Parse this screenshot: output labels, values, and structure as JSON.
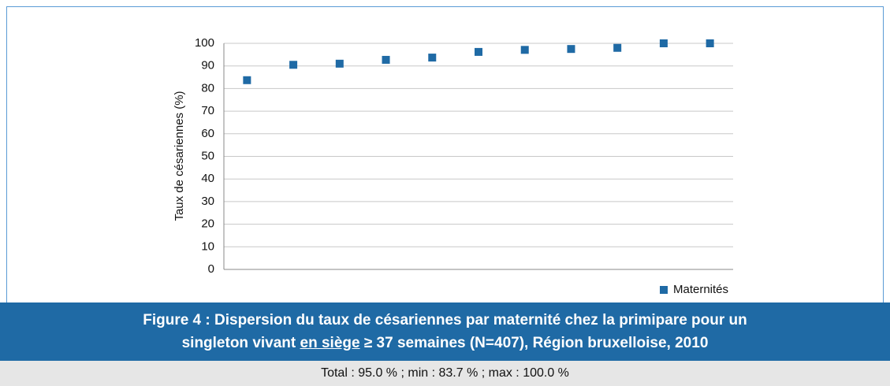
{
  "chart_data": {
    "type": "scatter",
    "y_label": "Taux de césariennes (%)",
    "categories": [
      null,
      null,
      null,
      null,
      null,
      null,
      null,
      null,
      null,
      null,
      null
    ],
    "series": [
      {
        "name": "Maternités",
        "color": "#1f6aa5",
        "values": [
          83.7,
          90.5,
          91,
          92.7,
          93.7,
          96.2,
          97.1,
          97.5,
          98,
          100,
          100
        ]
      }
    ],
    "ylim": [
      0,
      100
    ],
    "yticks": [
      0,
      10,
      20,
      30,
      40,
      50,
      60,
      70,
      80,
      90,
      100
    ],
    "grid": true,
    "legend": "bottom-right"
  },
  "figure": {
    "caption_line1": "Figure 4 : Dispersion du taux de césariennes par maternité chez la primipare pour un",
    "caption_line2": [
      "singleton vivant ",
      "en siège",
      " ≥ 37 semaines (N=407), Région bruxelloise, 2010"
    ],
    "note": "Total : 95.0 % ; min : 83.7 % ; max : 100.0 %"
  }
}
